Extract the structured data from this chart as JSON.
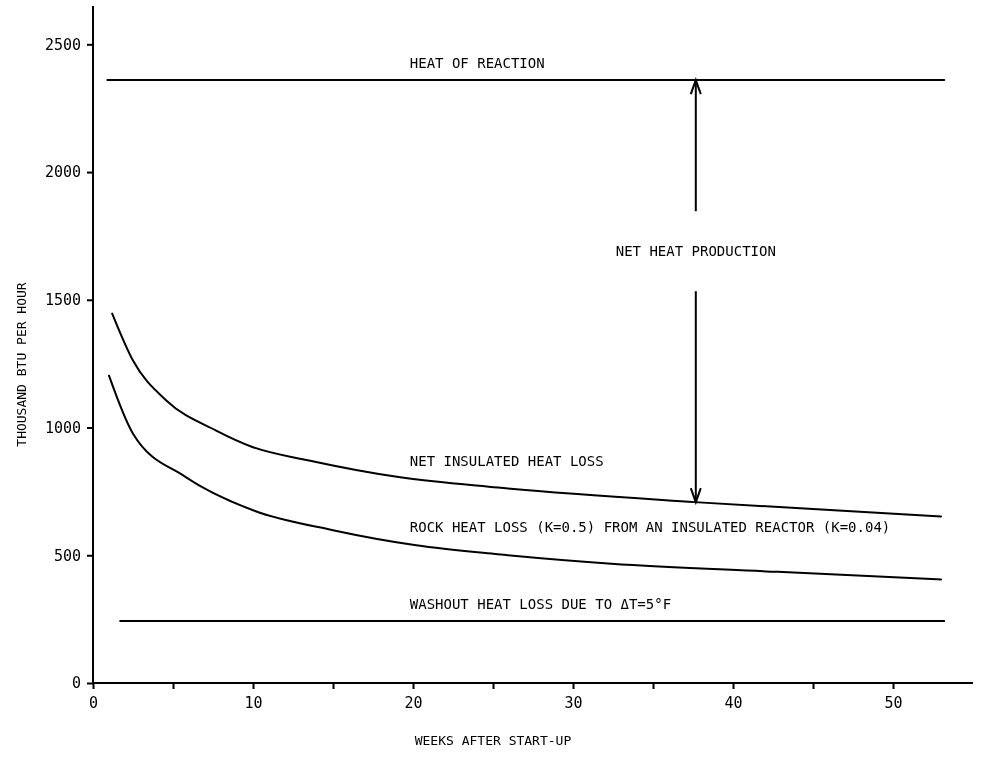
{
  "chart_data": {
    "type": "line",
    "xlabel": "WEEKS AFTER START-UP",
    "ylabel": "THOUSAND BTU PER HOUR",
    "xlim": [
      0,
      55
    ],
    "xticks": [
      0,
      {
        "value": 5,
        "label": null
      },
      10,
      {
        "value": 15,
        "label": null
      },
      20,
      {
        "value": 25,
        "label": null
      },
      30,
      {
        "value": 35,
        "label": null
      },
      40,
      {
        "value": 45,
        "label": null
      },
      50
    ],
    "ylim": [
      0,
      2650
    ],
    "yticks": [
      0,
      500,
      1000,
      1500,
      2000,
      2500
    ],
    "grid": false,
    "marker": "none",
    "line_style": "solid",
    "series": [
      {
        "name": "HEAT OF REACTION",
        "color": "#000000",
        "x": [
          0.9,
          53.2
        ],
        "values": [
          2360,
          2360
        ]
      },
      {
        "name": "NET INSULATED HEAT LOSS",
        "color": "#000000",
        "x": [
          1.2,
          2.5,
          4.6,
          7.7,
          10,
          13.5,
          19.1,
          25.3,
          37.6,
          53
        ],
        "values": [
          1446,
          1262,
          1105,
          988,
          923,
          871,
          806,
          765,
          708,
          652
        ]
      },
      {
        "name": "ROCK HEAT LOSS (K=0.5) FROM AN INSULATED REACTOR (K=0.04)",
        "color": "#000000",
        "x": [
          1,
          2.5,
          5.8,
          10,
          15,
          20.2,
          25.3,
          32.4,
          42.8,
          53
        ],
        "values": [
          1203,
          976,
          806,
          676,
          598,
          539,
          504,
          467,
          435,
          405
        ]
      },
      {
        "name": "WASHOUT HEAT LOSS DUE TO ΔT=5°F",
        "color": "#000000",
        "x": [
          1.7,
          53.2
        ],
        "values": [
          243,
          243
        ]
      }
    ],
    "annotations": [
      "NET HEAT PRODUCTION"
    ]
  }
}
